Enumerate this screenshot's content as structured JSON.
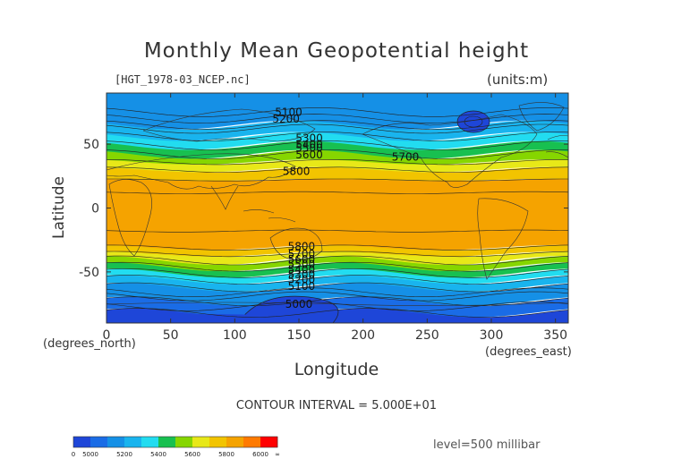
{
  "header": {
    "file_label": "[HGT_1978-03_NCEP.nc]",
    "units_label": "(units:m)"
  },
  "footer": {
    "contour_interval": "CONTOUR INTERVAL = 5.000E+01",
    "level": "level=500 millibar"
  },
  "chart_data": {
    "type": "heatmap",
    "title": "Monthly Mean Geopotential height",
    "xlabel": "Longitude",
    "ylabel": "Latitude",
    "x_unit_label": "(degrees_east)",
    "y_unit_label": "(degrees_north)",
    "xlim": [
      0,
      360
    ],
    "ylim": [
      -90,
      90
    ],
    "xticks": [
      0,
      50,
      100,
      150,
      200,
      250,
      300,
      350
    ],
    "yticks": [
      -50,
      0,
      50
    ],
    "contour_labels": [
      {
        "text": "5100",
        "lon": 142,
        "lat": 72
      },
      {
        "text": "5200",
        "lon": 140,
        "lat": 67
      },
      {
        "text": "5300",
        "lon": 158,
        "lat": 52
      },
      {
        "text": "5400",
        "lon": 158,
        "lat": 47
      },
      {
        "text": "5500",
        "lon": 158,
        "lat": 44
      },
      {
        "text": "5600",
        "lon": 158,
        "lat": 39
      },
      {
        "text": "5700",
        "lon": 233,
        "lat": 37
      },
      {
        "text": "5800",
        "lon": 148,
        "lat": 26
      },
      {
        "text": "5800",
        "lon": 152,
        "lat": -33
      },
      {
        "text": "5700",
        "lon": 152,
        "lat": -39
      },
      {
        "text": "5600",
        "lon": 152,
        "lat": -43
      },
      {
        "text": "5500",
        "lon": 152,
        "lat": -47
      },
      {
        "text": "5400",
        "lon": 152,
        "lat": -51
      },
      {
        "text": "5300",
        "lon": 152,
        "lat": -55
      },
      {
        "text": "5200",
        "lon": 152,
        "lat": -59
      },
      {
        "text": "5100",
        "lon": 152,
        "lat": -64
      },
      {
        "text": "5000",
        "lon": 150,
        "lat": -78
      }
    ],
    "bands": [
      {
        "level": "<5000",
        "color": "#1e46d8",
        "lat_top": -82,
        "lat_bot": -90
      },
      {
        "level": "5000-5100",
        "color": "#1a6ce6",
        "lat_top": -73,
        "lat_bot": -82
      },
      {
        "level": "5100-5200",
        "color": "#1590e6",
        "lat_top": -62,
        "lat_bot": -73
      },
      {
        "level": "5200-5300",
        "color": "#19b4ee",
        "lat_top": -56,
        "lat_bot": -62
      },
      {
        "level": "5300-5400",
        "color": "#22dcf0",
        "lat_top": -51,
        "lat_bot": -56
      },
      {
        "level": "5400-5500",
        "color": "#18c050",
        "lat_top": -46,
        "lat_bot": -51
      },
      {
        "level": "5500-5600",
        "color": "#86d600",
        "lat_top": -41,
        "lat_bot": -46
      },
      {
        "level": "5600-5700",
        "color": "#e8e818",
        "lat_top": -36,
        "lat_bot": -41
      },
      {
        "level": "5700-5800",
        "color": "#f2c400",
        "lat_top": -31,
        "lat_bot": -36
      },
      {
        "level": "5800-5900",
        "color": "#f5a300",
        "lat_top": 22,
        "lat_bot": -31
      },
      {
        "level": "5700-5800",
        "color": "#f2c400",
        "lat_top": 30,
        "lat_bot": 22
      },
      {
        "level": "5600-5700",
        "color": "#e8e818",
        "lat_top": 36,
        "lat_bot": 30
      },
      {
        "level": "5500-5600",
        "color": "#86d600",
        "lat_top": 42,
        "lat_bot": 36
      },
      {
        "level": "5400-5500",
        "color": "#18c050",
        "lat_top": 49,
        "lat_bot": 42
      },
      {
        "level": "5300-5400",
        "color": "#22dcf0",
        "lat_top": 56,
        "lat_bot": 49
      },
      {
        "level": "5200-5300",
        "color": "#19b4ee",
        "lat_top": 65,
        "lat_bot": 56
      },
      {
        "level": "5100-5200",
        "color": "#1590e6",
        "lat_top": 90,
        "lat_bot": 65
      }
    ],
    "colorbar": {
      "colors": [
        "#1e46d8",
        "#1a6ce6",
        "#1590e6",
        "#19b4ee",
        "#22dcf0",
        "#18c050",
        "#86d600",
        "#e8e818",
        "#f2c400",
        "#f5a300",
        "#ff7a00",
        "#ff0000"
      ],
      "labels": [
        "0",
        "5000",
        "5200",
        "5400",
        "5600",
        "5800",
        "6000",
        "∞"
      ],
      "label_positions": [
        0,
        1,
        3,
        5,
        7,
        9,
        11,
        12
      ]
    }
  }
}
